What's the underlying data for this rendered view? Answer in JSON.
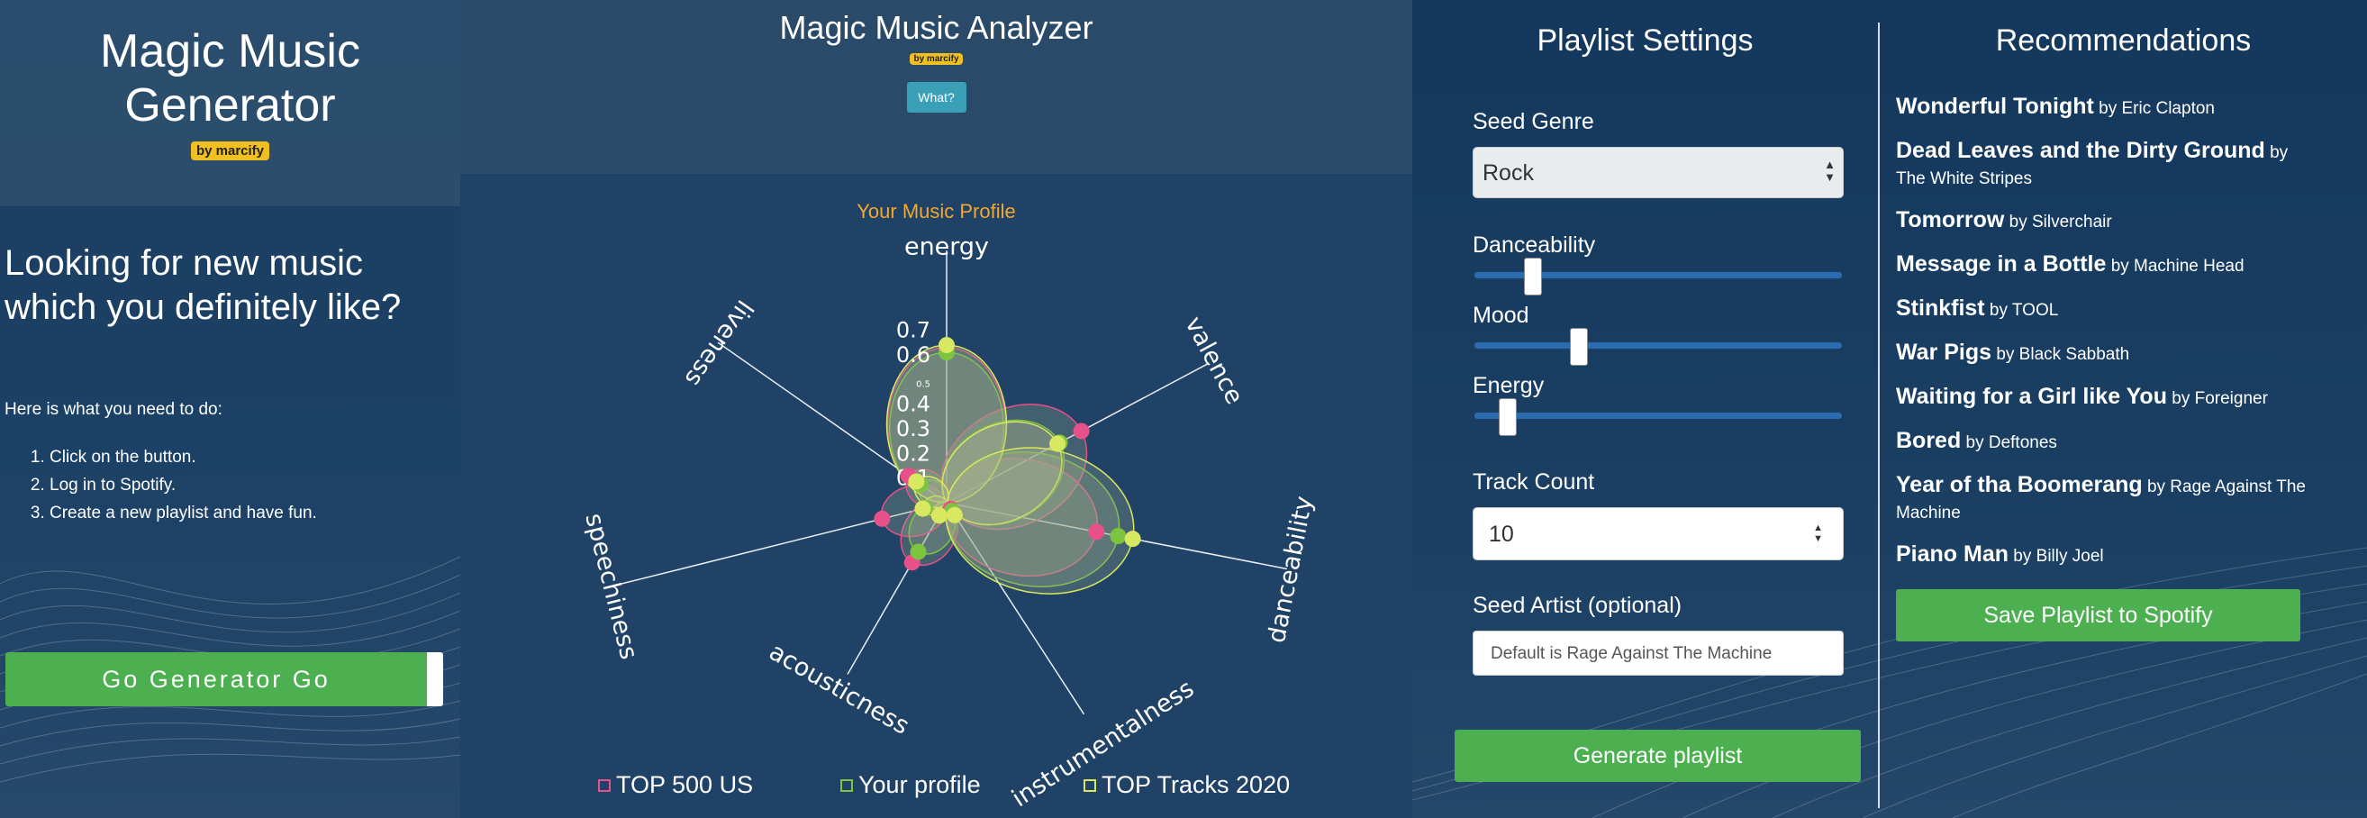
{
  "generator": {
    "title": "Magic Music Generator",
    "badge": "by marcify",
    "lead": "Looking for new music which you definitely like?",
    "intro": "Here is what you need to do:",
    "steps": [
      "Click on the button.",
      "Log in to Spotify.",
      "Create a new playlist and have fun."
    ],
    "button": "Go Generator Go"
  },
  "analyzer": {
    "title": "Magic Music Analyzer",
    "badge": "by marcify",
    "what_button": "What?",
    "profile_title": "Your Music Profile",
    "legend": [
      {
        "label": "TOP 500 US",
        "color": "#e8508a"
      },
      {
        "label": "Your profile",
        "color": "#7dc440"
      },
      {
        "label": "TOP Tracks 2020",
        "color": "#d8e860"
      }
    ]
  },
  "chart_data": {
    "type": "radar",
    "title": "Your Music Profile",
    "axes": [
      "energy",
      "valence",
      "danceability",
      "instrumentalness",
      "acousticness",
      "speechiness",
      "liveness"
    ],
    "radial_ticks": [
      "0.1",
      "0.2",
      "0.3",
      "0.4",
      "0.5",
      "0.6",
      "0.7"
    ],
    "rmax": 0.75,
    "series": [
      {
        "name": "TOP 500 US",
        "color": "#e8508a",
        "values": [
          0.63,
          0.62,
          0.62,
          0.03,
          0.28,
          0.27,
          0.19
        ]
      },
      {
        "name": "Your profile",
        "color": "#7dc440",
        "values": [
          0.61,
          0.52,
          0.71,
          0.04,
          0.23,
          0.09,
          0.13
        ]
      },
      {
        "name": "TOP Tracks 2020",
        "color": "#d8e860",
        "values": [
          0.64,
          0.51,
          0.77,
          0.06,
          0.06,
          0.1,
          0.15
        ]
      }
    ]
  },
  "settings": {
    "title": "Playlist Settings",
    "seed_genre_label": "Seed Genre",
    "seed_genre_value": "Rock",
    "danceability_label": "Danceability",
    "danceability_value": 0.14,
    "mood_label": "Mood",
    "mood_value": 0.27,
    "energy_label": "Energy",
    "energy_value": 0.07,
    "track_count_label": "Track Count",
    "track_count_value": "10",
    "seed_artist_label": "Seed Artist (optional)",
    "seed_artist_placeholder": "Default is Rage Against The Machine",
    "generate_button": "Generate playlist"
  },
  "recommendations": {
    "title": "Recommendations",
    "items": [
      {
        "title": "Wonderful Tonight",
        "artist": "by Eric Clapton"
      },
      {
        "title": "Dead Leaves and the Dirty Ground",
        "artist": "by The White Stripes"
      },
      {
        "title": "Tomorrow",
        "artist": "by Silverchair"
      },
      {
        "title": "Message in a Bottle",
        "artist": "by Machine Head"
      },
      {
        "title": "Stinkfist",
        "artist": "by TOOL"
      },
      {
        "title": "War Pigs",
        "artist": "by Black Sabbath"
      },
      {
        "title": "Waiting for a Girl like You",
        "artist": "by Foreigner"
      },
      {
        "title": "Bored",
        "artist": "by Deftones"
      },
      {
        "title": "Year of tha Boomerang",
        "artist": "by Rage Against The Machine"
      },
      {
        "title": "Piano Man",
        "artist": "by Billy Joel"
      }
    ],
    "save_button": "Save Playlist to Spotify"
  }
}
